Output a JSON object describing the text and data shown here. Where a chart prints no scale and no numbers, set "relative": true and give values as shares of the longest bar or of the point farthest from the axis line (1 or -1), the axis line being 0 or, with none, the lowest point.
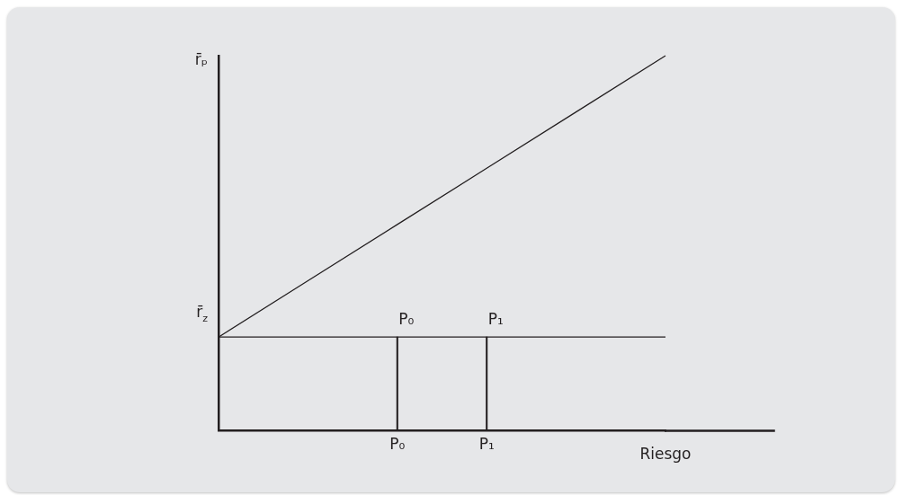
{
  "chart_data": {
    "type": "line",
    "relative": true,
    "xlabel": "Riesgo",
    "ylabel": "r̄ₚ",
    "categories": [
      null,
      null,
      "P₀",
      "P₁",
      null,
      null
    ],
    "series": [
      {
        "color": "#231f20",
        "values": [
          0.25,
          0.4,
          0.55,
          0.7,
          0.85,
          1
        ]
      },
      {
        "type": "bar",
        "color": "#231f20",
        "values": [
          null,
          null,
          0.25,
          0.25,
          null,
          null
        ]
      }
    ],
    "ref_lines": [
      {
        "axis": "y",
        "value": 0.25,
        "label": "r̄$_{z}$",
        "color": "#231f20"
      }
    ],
    "annotations": [
      {
        "text": "P₀",
        "x": "P₀",
        "y": 0.25
      },
      {
        "text": "P₁",
        "x": "P₁",
        "y": 0.25
      }
    ],
    "grid": false,
    "legend": false,
    "marker": "none",
    "line_style": "solid"
  }
}
